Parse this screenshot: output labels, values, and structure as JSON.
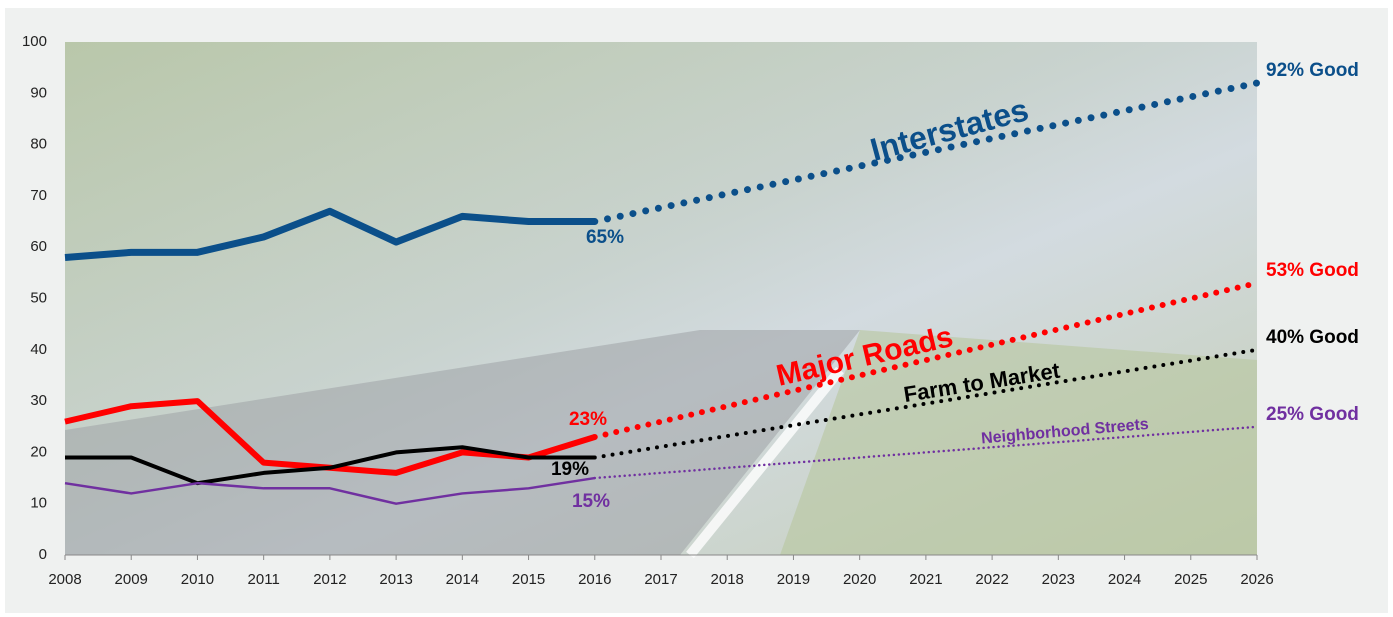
{
  "chart_data": {
    "type": "line",
    "x": [
      2008,
      2009,
      2010,
      2011,
      2012,
      2013,
      2014,
      2015,
      2016
    ],
    "xlim": [
      2008,
      2026
    ],
    "xticks": [
      2008,
      2009,
      2010,
      2011,
      2012,
      2013,
      2014,
      2015,
      2016,
      2017,
      2018,
      2019,
      2020,
      2021,
      2022,
      2023,
      2024,
      2025,
      2026
    ],
    "ylim": [
      0,
      100
    ],
    "yticks": [
      0,
      10,
      20,
      30,
      40,
      50,
      60,
      70,
      80,
      90,
      100
    ],
    "series": [
      {
        "name": "Interstates",
        "color": "#0b4f8a",
        "values": [
          58,
          59,
          59,
          62,
          67,
          61,
          66,
          65,
          65
        ],
        "value_labels": [
          null,
          null,
          null,
          null,
          null,
          null,
          null,
          null,
          "65%"
        ],
        "projection_x": [
          2016,
          2026
        ],
        "projection": [
          65,
          92
        ],
        "projection_value_labels": [
          null,
          "92% Good"
        ]
      },
      {
        "name": "Major Roads",
        "color": "#ff0000",
        "values": [
          26,
          29,
          30,
          18,
          17,
          16,
          20,
          19,
          23
        ],
        "value_labels": [
          null,
          null,
          null,
          null,
          null,
          null,
          null,
          null,
          "23%"
        ],
        "projection_x": [
          2016,
          2026
        ],
        "projection": [
          23,
          53
        ],
        "projection_value_labels": [
          null,
          "53% Good"
        ]
      },
      {
        "name": "Farm to Market",
        "color": "#000000",
        "values": [
          19,
          19,
          14,
          16,
          17,
          20,
          21,
          19,
          19
        ],
        "value_labels": [
          null,
          null,
          null,
          null,
          null,
          null,
          null,
          null,
          "19%"
        ],
        "projection_x": [
          2016,
          2026
        ],
        "projection": [
          19,
          40
        ],
        "projection_value_labels": [
          null,
          "40% Good"
        ]
      },
      {
        "name": "Neighborhood Streets",
        "color": "#7030a0",
        "values": [
          14,
          12,
          14,
          13,
          13,
          10,
          12,
          13,
          15
        ],
        "value_labels": [
          null,
          null,
          null,
          null,
          null,
          null,
          null,
          null,
          "15%"
        ],
        "projection_x": [
          2016,
          2026
        ],
        "projection": [
          15,
          25
        ],
        "projection_value_labels": [
          null,
          "25% Good"
        ]
      }
    ]
  }
}
